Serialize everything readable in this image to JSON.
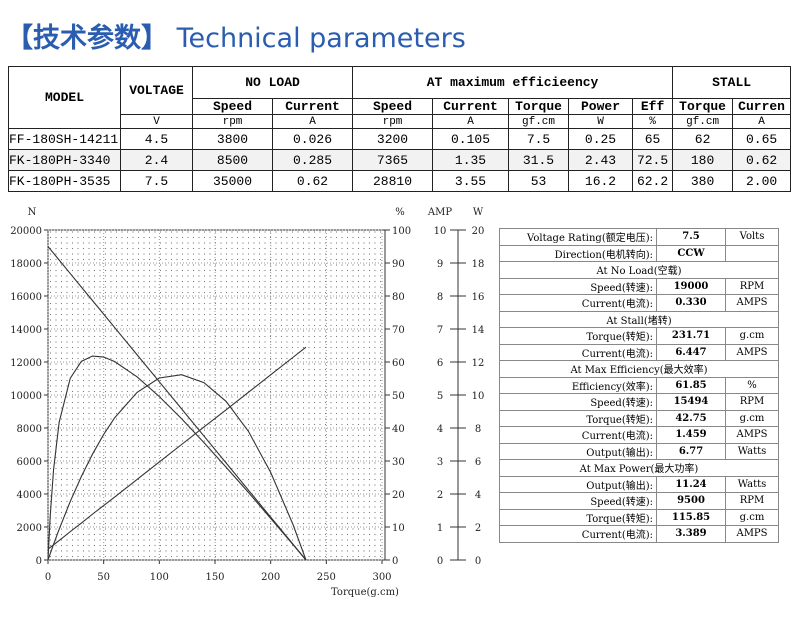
{
  "header": {
    "title_cn": "【技术参数】",
    "title_en": "Technical parameters"
  },
  "spec_table": {
    "header": {
      "model": "MODEL",
      "voltage": "VOLTAGE",
      "no_load": "NO LOAD",
      "max_eff": "AT maximum efficieency",
      "stall": "STALL"
    },
    "subheaders": [
      "Speed",
      "Current",
      "Speed",
      "Current",
      "Torque",
      "Power",
      "Eff",
      "Torque",
      "Curren"
    ],
    "units": [
      "V",
      "rpm",
      "A",
      "rpm",
      "A",
      "gf.cm",
      "W",
      "%",
      "gf.cm",
      "A"
    ],
    "rows": [
      [
        "FF-180SH-14211",
        "4.5",
        "3800",
        "0.026",
        "3200",
        "0.105",
        "7.5",
        "0.25",
        "65",
        "62",
        "0.65"
      ],
      [
        "FK-180PH-3340",
        "2.4",
        "8500",
        "0.285",
        "7365",
        "1.35",
        "31.5",
        "2.43",
        "72.5",
        "180",
        "0.62"
      ],
      [
        "FK-180PH-3535",
        "7.5",
        "35000",
        "0.62",
        "28810",
        "3.55",
        "53",
        "16.2",
        "62.2",
        "380",
        "2.00"
      ]
    ]
  },
  "chart_data": {
    "type": "line",
    "xlabel": "Torque(g.cm)",
    "xlim": [
      0,
      300
    ],
    "xticks": [
      0,
      50,
      100,
      150,
      200,
      250,
      300
    ],
    "ylabel": "N",
    "ylim": [
      0,
      20000
    ],
    "yticks": [
      0,
      2000,
      4000,
      6000,
      8000,
      10000,
      12000,
      14000,
      16000,
      18000,
      20000
    ],
    "y2label": "%",
    "y2lim": [
      0,
      100
    ],
    "y2ticks": [
      0,
      10,
      20,
      30,
      40,
      50,
      60,
      70,
      80,
      90,
      100
    ],
    "y3label": "AMP",
    "y3lim": [
      0,
      10
    ],
    "y3ticks": [
      0,
      1,
      2,
      3,
      4,
      5,
      6,
      7,
      8,
      9,
      10
    ],
    "y4label": "W",
    "y4lim": [
      0,
      20
    ],
    "y4ticks": [
      0,
      2,
      4,
      6,
      8,
      10,
      12,
      14,
      16,
      18,
      20
    ],
    "grid": true,
    "x": [
      0,
      2,
      5,
      10,
      20,
      30,
      40,
      50,
      60,
      80,
      100,
      120,
      140,
      160,
      180,
      200,
      220,
      231.71
    ],
    "series": [
      {
        "axis": "y",
        "color": "#333333",
        "values": [
          19000,
          18836,
          18590,
          18180,
          17360,
          16540,
          15720,
          14900,
          14080,
          12440,
          10800,
          9160,
          7520,
          5880,
          4240,
          2600,
          960,
          0
        ]
      },
      {
        "axis": "y2",
        "color": "#333333",
        "values": [
          0,
          13.4,
          27.4,
          41.7,
          55.1,
          60.2,
          61.8,
          61.5,
          60.1,
          55.5,
          49.5,
          42.8,
          35.6,
          28.1,
          20.5,
          12.6,
          4.7,
          0
        ]
      },
      {
        "axis": "y3",
        "color": "#333333",
        "values": [
          0.33,
          0.38,
          0.46,
          0.59,
          0.86,
          1.12,
          1.39,
          1.65,
          1.91,
          2.44,
          2.97,
          3.5,
          4.03,
          4.55,
          5.08,
          5.61,
          6.14,
          6.45
        ]
      },
      {
        "axis": "y4",
        "color": "#333333",
        "values": [
          0,
          0.38,
          0.95,
          1.86,
          3.55,
          5.07,
          6.42,
          7.61,
          8.63,
          10.16,
          11.03,
          11.23,
          10.75,
          9.61,
          7.8,
          5.31,
          2.16,
          0
        ]
      }
    ]
  },
  "info_panel": {
    "rows": [
      {
        "label": "Voltage Rating(额定电压):",
        "value": "7.5",
        "unit": "Volts"
      },
      {
        "label": "Direction(电机转向):",
        "value": "CCW"
      },
      {
        "section": "At No Load(空载)"
      },
      {
        "label": "Speed(转速):",
        "value": "19000",
        "unit": "RPM"
      },
      {
        "label": "Current(电流):",
        "value": "0.330",
        "unit": "AMPS"
      },
      {
        "section": "At Stall(堵转)"
      },
      {
        "label": "Torque(转矩):",
        "value": "231.71",
        "unit": "g.cm"
      },
      {
        "label": "Current(电流):",
        "value": "6.447",
        "unit": "AMPS"
      },
      {
        "section": "At Max Efficiency(最大效率)"
      },
      {
        "label": "Efficiency(效率):",
        "value": "61.85",
        "unit": "%"
      },
      {
        "label": "Speed(转速):",
        "value": "15494",
        "unit": "RPM"
      },
      {
        "label": "Torque(转矩):",
        "value": "42.75",
        "unit": "g.cm"
      },
      {
        "label": "Current(电流):",
        "value": "1.459",
        "unit": "AMPS"
      },
      {
        "label": "Output(输出):",
        "value": "6.77",
        "unit": "Watts"
      },
      {
        "section": "At Max Power(最大功率)"
      },
      {
        "label": "Output(输出):",
        "value": "11.24",
        "unit": "Watts"
      },
      {
        "label": "Speed(转速):",
        "value": "9500",
        "unit": "RPM"
      },
      {
        "label": "Torque(转矩):",
        "value": "115.85",
        "unit": "g.cm"
      },
      {
        "label": "Current(电流):",
        "value": "3.389",
        "unit": "AMPS"
      }
    ]
  }
}
